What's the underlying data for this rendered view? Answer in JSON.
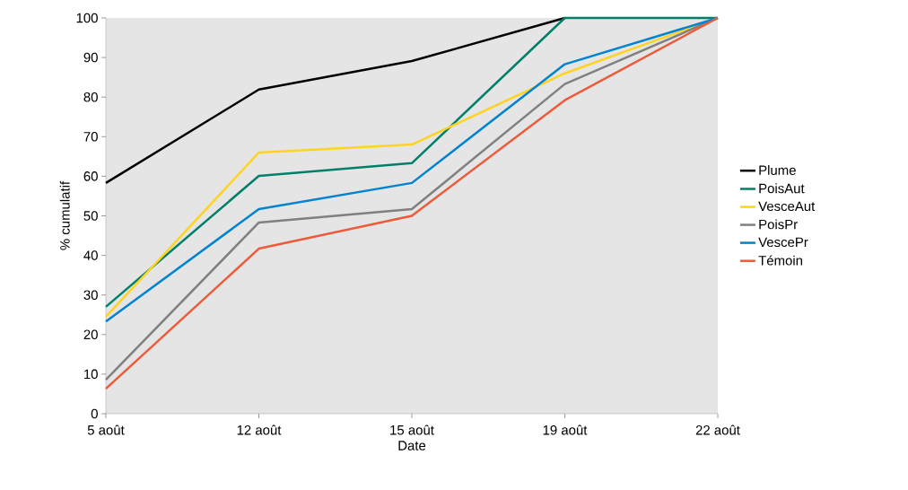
{
  "chart_data": {
    "type": "line",
    "xlabel": "Date",
    "ylabel": "% cumulatif",
    "categories": [
      "5 août",
      "12 août",
      "15 août",
      "19 août",
      "22 août"
    ],
    "series": [
      {
        "name": "Plume",
        "color": "#000000",
        "values": [
          58.3,
          81.9,
          89.1,
          100,
          null
        ]
      },
      {
        "name": "PoisAut",
        "color": "#00806a",
        "values": [
          27,
          60.1,
          63.3,
          100,
          100
        ]
      },
      {
        "name": "VesceAut",
        "color": "#ffd320",
        "values": [
          24.5,
          66,
          68,
          86,
          100
        ]
      },
      {
        "name": "PoisPr",
        "color": "#808080",
        "values": [
          8.6,
          48.3,
          51.7,
          83.3,
          100
        ]
      },
      {
        "name": "VescePr",
        "color": "#0084d1",
        "values": [
          23.3,
          51.7,
          58.3,
          88.3,
          100
        ]
      },
      {
        "name": "Témoin",
        "color": "#ee5a3a",
        "values": [
          6.3,
          41.7,
          50,
          79.2,
          100
        ]
      }
    ],
    "ylim": [
      0,
      100
    ],
    "yticks": [
      0,
      10,
      20,
      30,
      40,
      50,
      60,
      70,
      80,
      90,
      100
    ],
    "grid": false,
    "legend": "right",
    "marker": "none",
    "line_style": "solid"
  }
}
